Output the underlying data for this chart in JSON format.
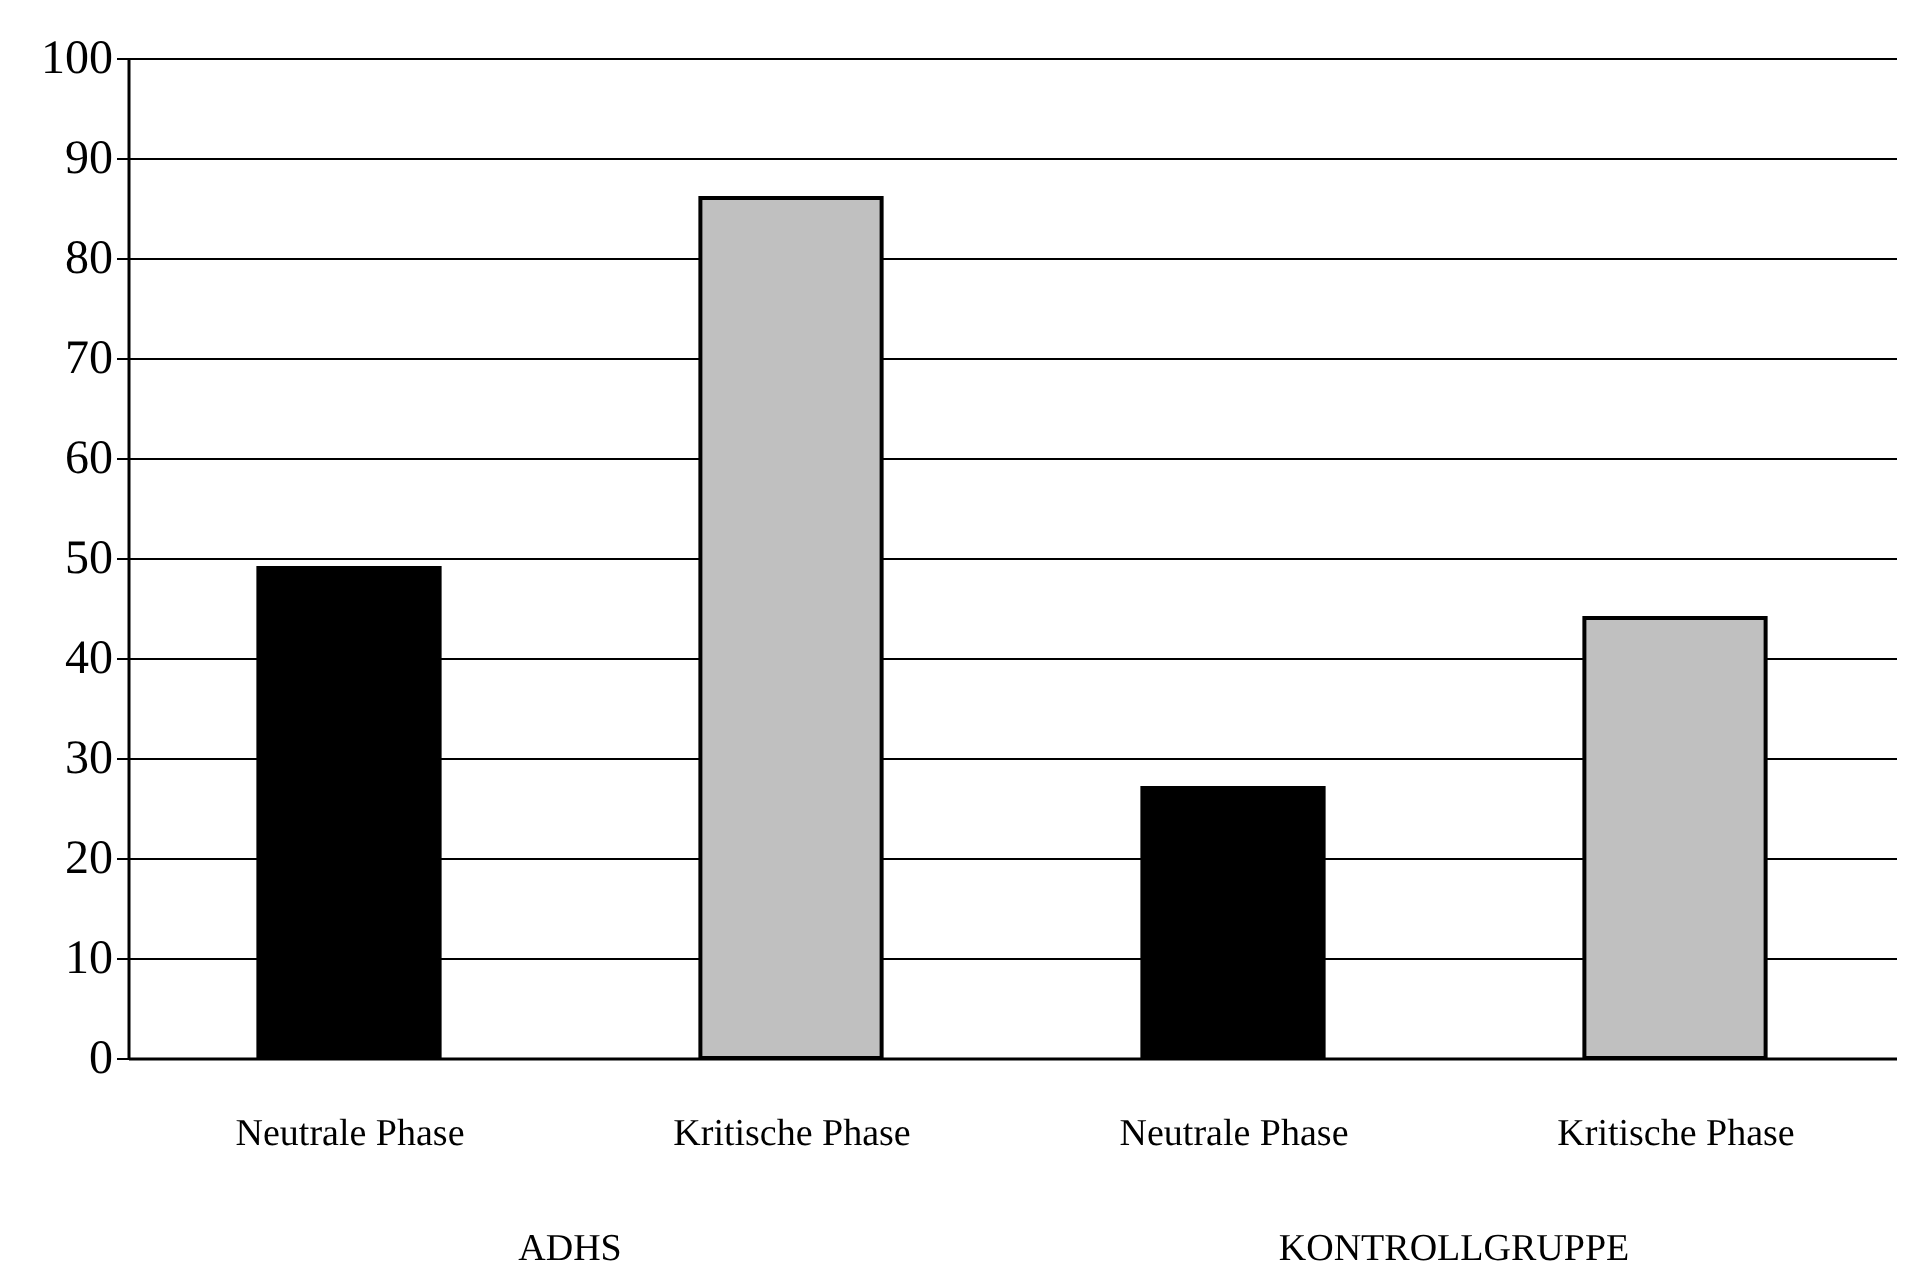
{
  "chart_data": {
    "type": "bar",
    "categories": [
      "Neutrale Phase",
      "Kritische Phase",
      "Neutrale Phase",
      "Kritische Phase"
    ],
    "values": [
      49,
      86,
      27,
      44
    ],
    "colors": [
      "#000000",
      "#c0c0c0",
      "#000000",
      "#c0c0c0"
    ],
    "annotations": [
      "ADHS",
      "KONTROLLGRUPPE"
    ],
    "ylim": [
      0,
      100
    ],
    "yticks": [
      0,
      10,
      20,
      30,
      40,
      50,
      60,
      70,
      80,
      90,
      100
    ],
    "grid": "y"
  }
}
